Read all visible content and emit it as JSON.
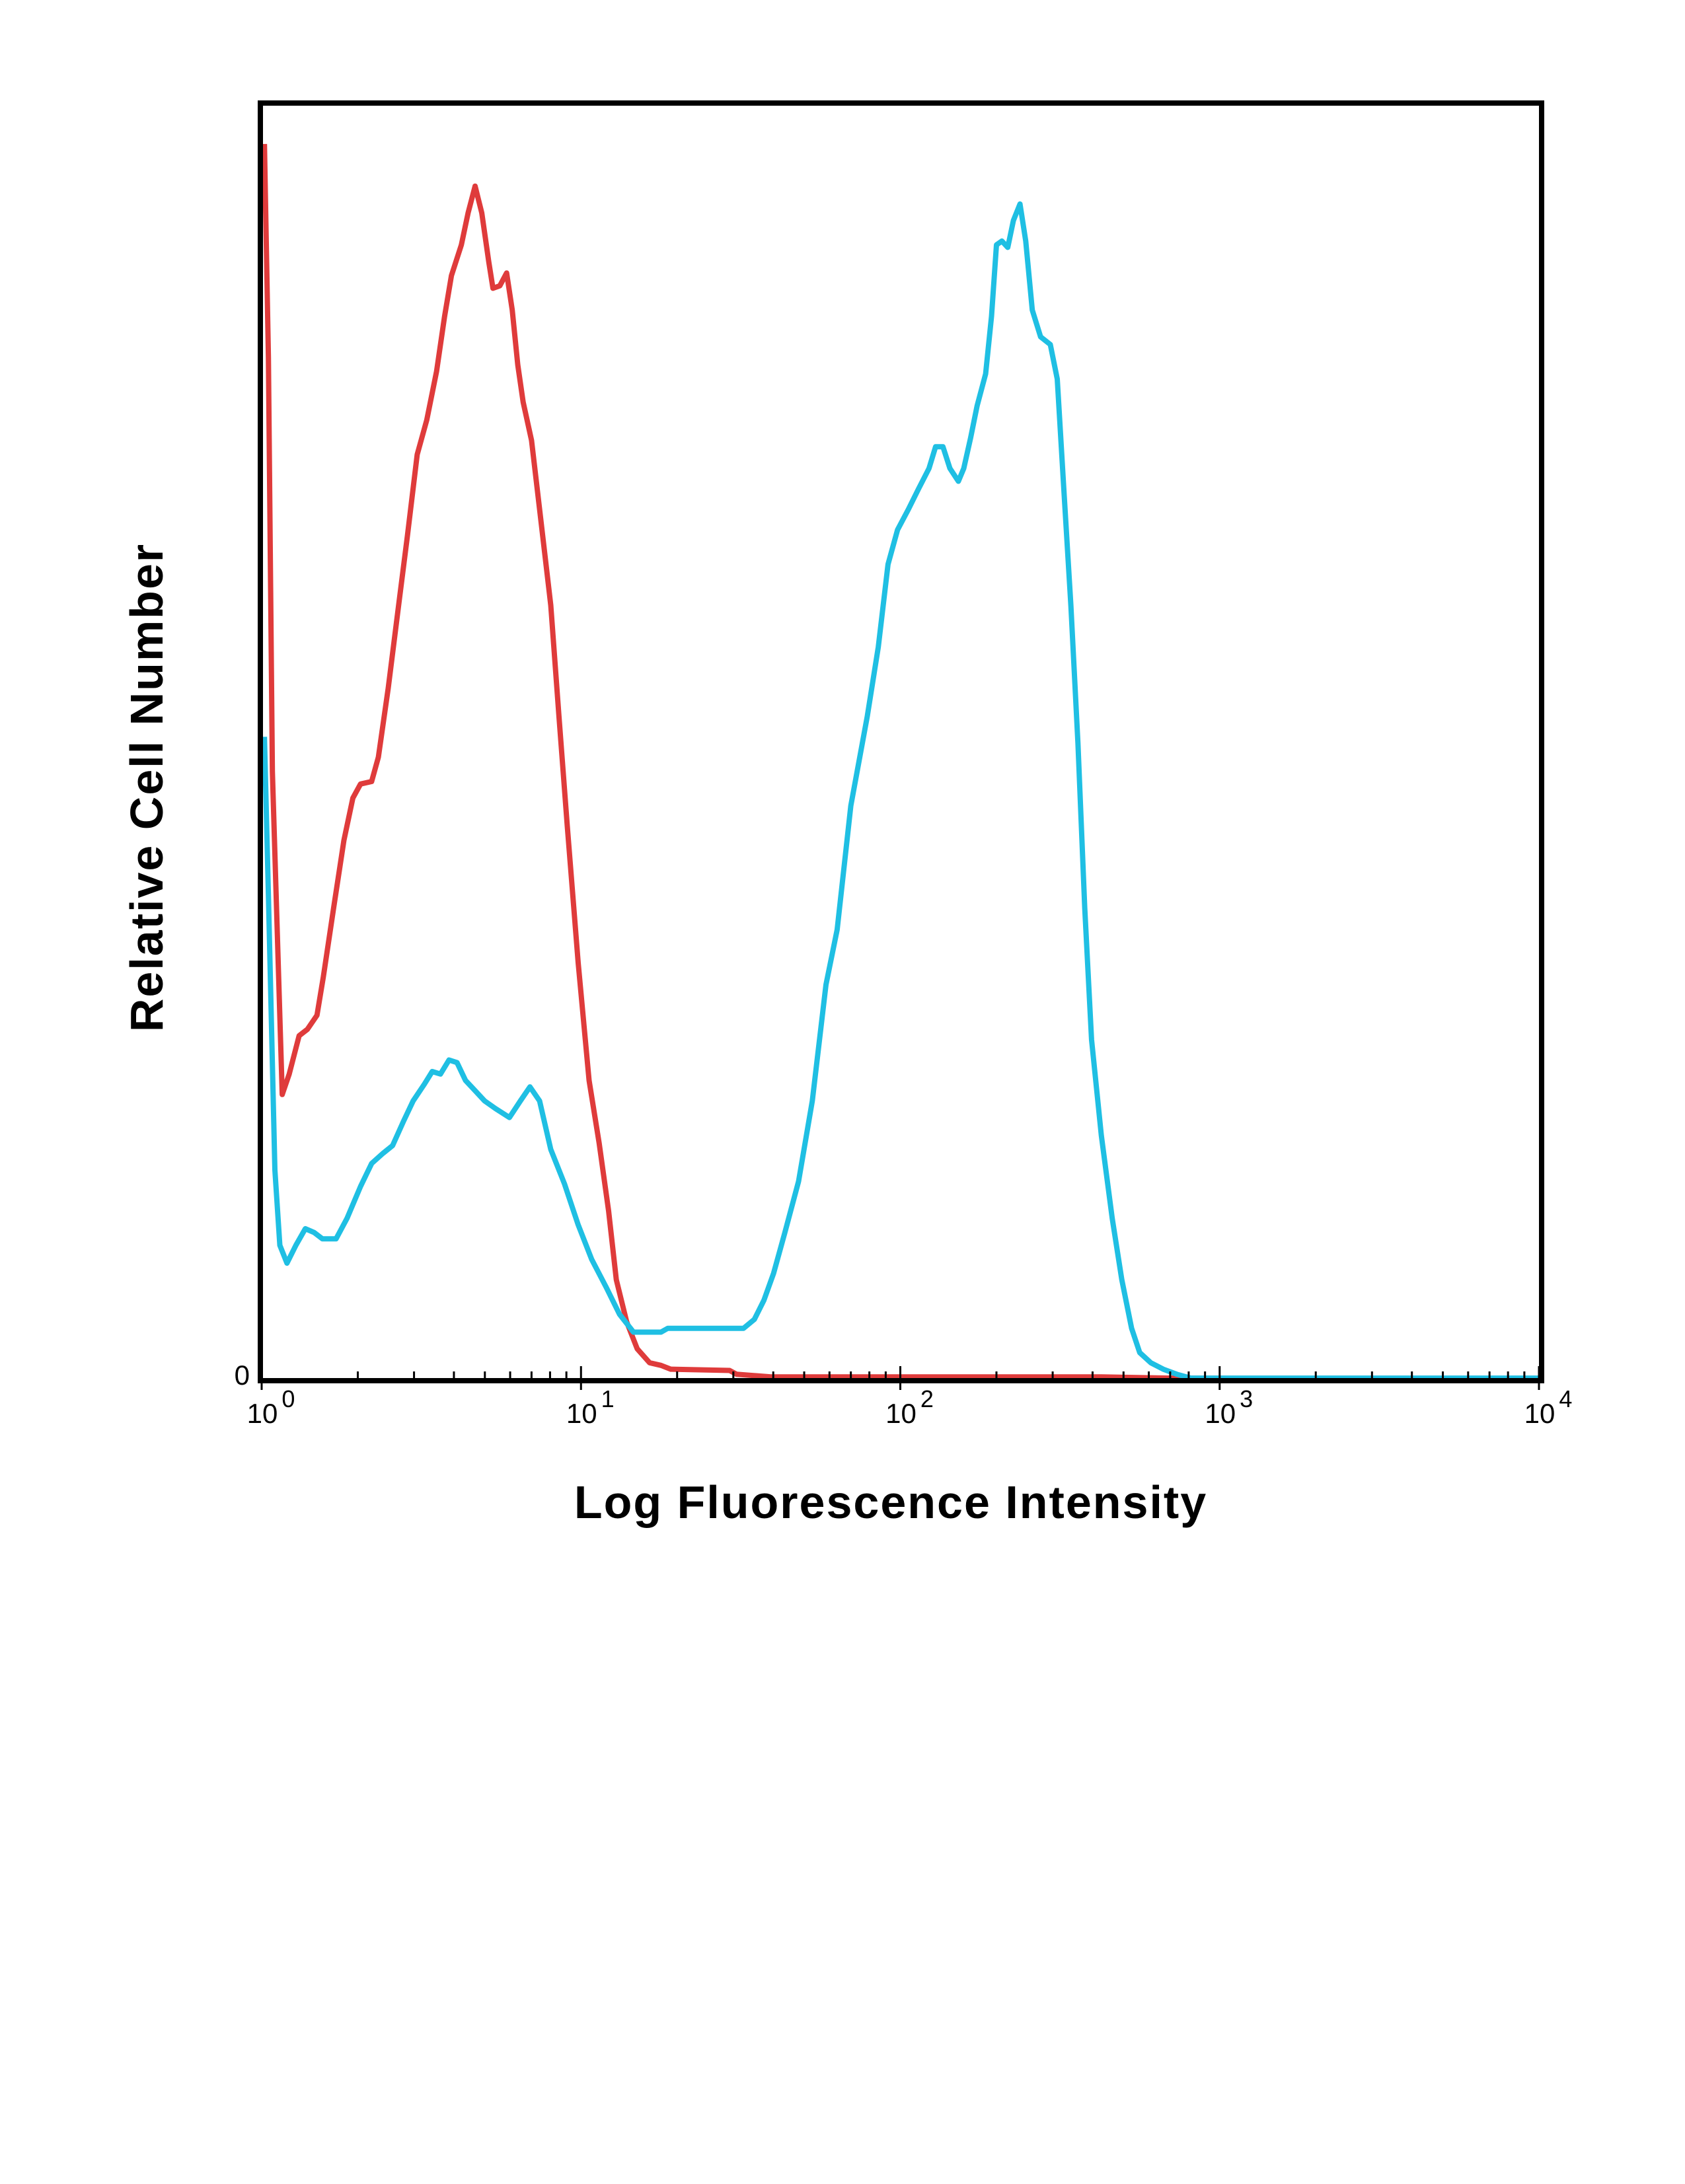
{
  "chart_data": {
    "type": "line",
    "xlabel": "Log Fluorescence Intensity",
    "ylabel": "Relative Cell Number",
    "xscale": "log",
    "xlim": [
      1,
      10000
    ],
    "ylim": [
      0,
      100
    ],
    "xticks": [
      {
        "value": 1,
        "label": "10",
        "exponent": "0"
      },
      {
        "value": 10,
        "label": "10",
        "exponent": "1"
      },
      {
        "value": 100,
        "label": "10",
        "exponent": "2"
      },
      {
        "value": 1000,
        "label": "10",
        "exponent": "3"
      },
      {
        "value": 10000,
        "label": "10",
        "exponent": "4"
      }
    ],
    "xminorticks": [
      2,
      3,
      4,
      5,
      6,
      7,
      8,
      9,
      20,
      30,
      40,
      50,
      60,
      70,
      80,
      90,
      200,
      300,
      400,
      500,
      600,
      700,
      800,
      900,
      2000,
      3000,
      4000,
      5000,
      6000,
      7000,
      8000,
      9000
    ],
    "yticks": [
      0
    ],
    "grid": false,
    "series": [
      {
        "color": "#df3b3b",
        "x": [
          1.02,
          1.05,
          1.08,
          1.16,
          1.22,
          1.31,
          1.39,
          1.49,
          1.56,
          1.68,
          1.81,
          1.93,
          2.04,
          2.21,
          2.32,
          2.49,
          2.7,
          2.86,
          3.07,
          3.29,
          3.53,
          3.74,
          3.93,
          4.22,
          4.43,
          4.66,
          4.89,
          5.14,
          5.3,
          5.57,
          5.85,
          6.09,
          6.34,
          6.59,
          7.0,
          7.42,
          8.04,
          8.53,
          9.06,
          9.8,
          10.6,
          11.4,
          12.2,
          12.9,
          13.9,
          15.0,
          16.4,
          17.8,
          19.1,
          29.2,
          30.7,
          39.3,
          426,
          700,
          10000
        ],
        "values": [
          96.8,
          80.1,
          47.7,
          22.4,
          24.0,
          27.0,
          27.5,
          28.6,
          31.6,
          37.0,
          42.3,
          45.6,
          46.7,
          46.9,
          48.8,
          54.2,
          61.2,
          66.1,
          72.5,
          75.2,
          79.0,
          83.3,
          86.5,
          88.9,
          91.4,
          93.5,
          91.4,
          87.6,
          85.5,
          85.7,
          86.7,
          83.8,
          79.5,
          76.6,
          73.6,
          68.2,
          60.7,
          52.0,
          43.4,
          32.7,
          23.5,
          18.6,
          13.3,
          7.9,
          4.6,
          2.5,
          1.4,
          1.2,
          0.9,
          0.8,
          0.5,
          0.3,
          0.3,
          0.2,
          0.1
        ]
      },
      {
        "color": "#1fbfe3",
        "x": [
          1.02,
          1.05,
          1.1,
          1.14,
          1.2,
          1.28,
          1.37,
          1.46,
          1.55,
          1.71,
          1.85,
          2.04,
          2.21,
          2.4,
          2.57,
          2.78,
          2.98,
          3.23,
          3.42,
          3.63,
          3.86,
          4.09,
          4.35,
          4.66,
          4.99,
          5.4,
          5.97,
          6.46,
          6.92,
          7.42,
          8.04,
          8.88,
          9.8,
          10.8,
          12.0,
          13.2,
          14.6,
          17.8,
          18.7,
          32.3,
          34.9,
          37.4,
          40.1,
          43.5,
          48.0,
          53.0,
          58.5,
          63.4,
          70.0,
          78.8,
          85.3,
          91.5,
          98.0,
          106,
          114,
          123,
          129,
          136,
          143,
          152,
          158,
          166,
          174,
          185,
          193,
          200,
          208,
          217,
          226,
          237,
          247,
          259,
          275,
          295,
          310,
          326,
          342,
          360,
          378,
          397,
          426,
          461,
          494,
          530,
          562,
          609,
          666,
          735,
          812,
          10000
        ],
        "values": [
          50.4,
          38.0,
          16.5,
          10.6,
          9.2,
          10.6,
          11.9,
          11.6,
          11.1,
          11.1,
          12.7,
          15.2,
          17.0,
          17.8,
          18.4,
          20.3,
          21.9,
          23.2,
          24.2,
          24.0,
          25.1,
          24.9,
          23.5,
          22.7,
          21.9,
          21.3,
          20.6,
          21.9,
          23.0,
          21.9,
          18.1,
          15.4,
          12.2,
          9.5,
          7.3,
          5.2,
          3.8,
          3.8,
          4.1,
          4.1,
          4.8,
          6.3,
          8.4,
          11.6,
          15.6,
          21.9,
          31.0,
          35.3,
          45.0,
          52.0,
          57.4,
          63.9,
          66.6,
          68.2,
          69.8,
          71.4,
          73.1,
          73.1,
          71.4,
          70.4,
          71.4,
          73.8,
          76.3,
          78.8,
          83.3,
          88.9,
          89.2,
          88.7,
          90.8,
          92.1,
          89.2,
          83.8,
          81.7,
          81.1,
          78.4,
          69.3,
          60.7,
          49.9,
          37.0,
          26.7,
          19.2,
          12.7,
          7.9,
          4.1,
          2.2,
          1.4,
          0.9,
          0.5,
          0.2,
          0.2
        ]
      }
    ]
  }
}
